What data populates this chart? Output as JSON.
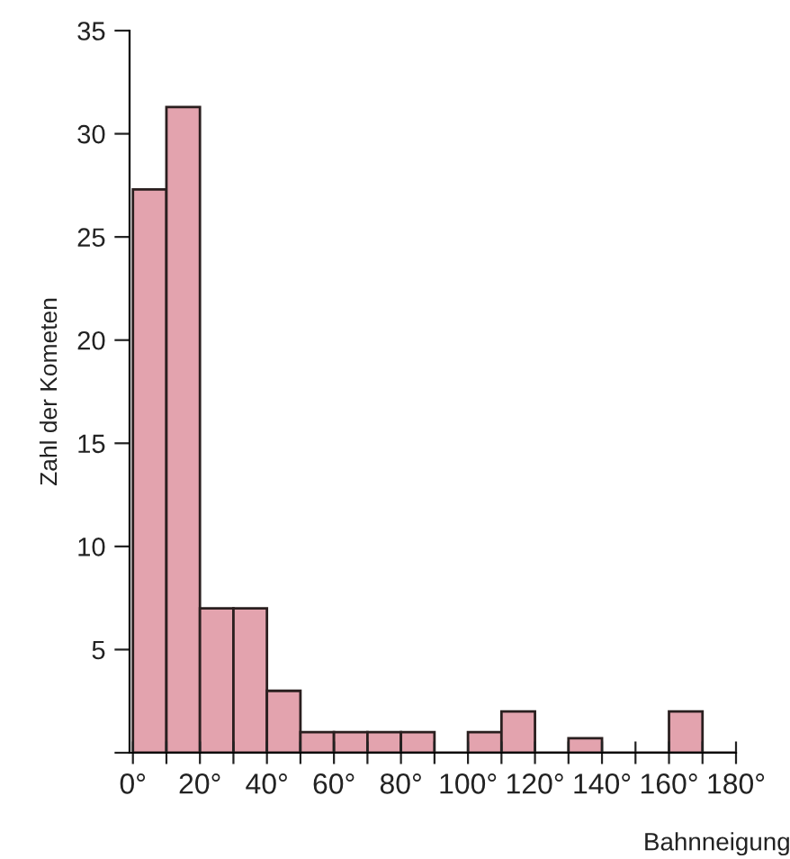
{
  "chart_data": {
    "type": "histogram",
    "xlabel": "Bahnneigung",
    "ylabel": "Zahl der Kometen",
    "bins": [
      0,
      10,
      20,
      30,
      40,
      50,
      60,
      70,
      80,
      90,
      100,
      110,
      120,
      130,
      140,
      150,
      160,
      170,
      180
    ],
    "values": [
      27.3,
      31.3,
      7,
      7,
      3,
      1,
      1,
      1,
      1,
      0,
      1,
      2,
      0,
      0.7,
      0,
      0,
      2,
      0
    ],
    "color": "#e3a3ae",
    "xlim": [
      -1,
      180
    ],
    "xticks": [
      {
        "value": 0,
        "label": "0°"
      },
      {
        "value": 10,
        "label": null
      },
      {
        "value": 20,
        "label": "20°"
      },
      {
        "value": 30,
        "label": null
      },
      {
        "value": 40,
        "label": "40°"
      },
      {
        "value": 50,
        "label": null
      },
      {
        "value": 60,
        "label": "60°"
      },
      {
        "value": 70,
        "label": null
      },
      {
        "value": 80,
        "label": "80°"
      },
      {
        "value": 90,
        "label": null
      },
      {
        "value": 100,
        "label": "100°"
      },
      {
        "value": 110,
        "label": null
      },
      {
        "value": 120,
        "label": "120°"
      },
      {
        "value": 130,
        "label": null
      },
      {
        "value": 140,
        "label": "140°"
      },
      {
        "value": 150,
        "label": null
      },
      {
        "value": 160,
        "label": "160°"
      },
      {
        "value": 170,
        "label": null
      },
      {
        "value": 180,
        "label": "180°"
      }
    ],
    "ylim": [
      0,
      35
    ],
    "yticks": [
      {
        "value": 0,
        "label": null
      },
      5,
      10,
      15,
      20,
      25,
      30,
      35
    ],
    "grid": false
  }
}
